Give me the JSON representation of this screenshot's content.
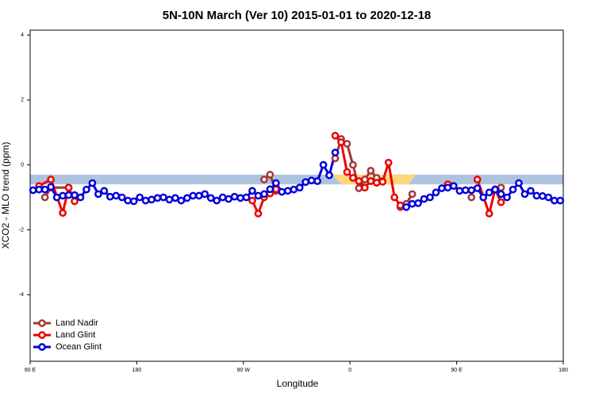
{
  "chart_data": {
    "type": "line",
    "title": "5N-10N March (Ver 10)   2015-01-01 to 2020-12-18",
    "x_label": "Longitude",
    "y_label": "XCO2 - MLO trend (ppm)",
    "xlim": [
      90,
      540
    ],
    "ylim": [
      -6.05,
      4.15
    ],
    "xticks": [
      {
        "value": 90,
        "label": "90 E"
      },
      {
        "value": 180,
        "label": "180"
      },
      {
        "value": 270,
        "label": "90 W"
      },
      {
        "value": 360,
        "label": "0"
      },
      {
        "value": 450,
        "label": "90 E"
      },
      {
        "value": 540,
        "label": "180"
      }
    ],
    "yticks": [
      -4,
      -2,
      0,
      2,
      4
    ],
    "band": [
      -0.6,
      -0.3
    ],
    "band_color": "#aec4de",
    "highlight": [
      345,
      415
    ],
    "highlight_color": "#fdd77a",
    "legend": "bottom-left",
    "series": [
      {
        "name": "Land Nadir",
        "color": "#a0383a",
        "x": [
          102.5,
          107.5,
          122.5,
          200,
          287.5,
          292.5,
          297.5,
          320,
          347.5,
          352.5,
          357.5,
          362.5,
          367.5,
          372.5,
          377.5,
          382.5,
          387.5,
          395,
          402.5,
          407.5,
          412.5,
          425,
          442.5,
          450,
          462.5,
          475,
          487.5
        ],
        "values": [
          -1.0,
          -0.7,
          -0.7,
          null,
          -0.45,
          -0.3,
          -0.8,
          null,
          0.2,
          0.8,
          0.65,
          0.0,
          -0.72,
          -0.45,
          -0.18,
          -0.4,
          -0.5,
          null,
          -1.3,
          -1.2,
          -0.9,
          null,
          -0.6,
          null,
          -1.0,
          null,
          -0.7
        ]
      },
      {
        "name": "Land Glint",
        "color": "#ee0000",
        "x": [
          97.5,
          107.5,
          117.5,
          122.5,
          127.5,
          200,
          277.5,
          282.5,
          287.5,
          292.5,
          297.5,
          320,
          347.5,
          352.5,
          357.5,
          362.5,
          367.5,
          372.5,
          377.5,
          382.5,
          387.5,
          392.5,
          397.5,
          402.5,
          425,
          442.5,
          455,
          467.5,
          477.5,
          482.5,
          487.5
        ],
        "values": [
          -0.65,
          -0.45,
          -1.48,
          -0.7,
          -1.12,
          null,
          -1.1,
          -1.5,
          -1.0,
          -0.88,
          -0.75,
          null,
          0.9,
          0.7,
          -0.22,
          -0.4,
          -0.5,
          -0.7,
          -0.5,
          -0.55,
          -0.52,
          0.07,
          -1.0,
          -1.25,
          null,
          -0.6,
          null,
          -0.45,
          -1.5,
          -0.75,
          -1.15
        ]
      },
      {
        "name": "Ocean Glint",
        "color": "#0000dd",
        "x": [
          92.5,
          97.5,
          102.5,
          107.5,
          112.5,
          117.5,
          122.5,
          127.5,
          132.5,
          137.5,
          142.5,
          147.5,
          152.5,
          157.5,
          162.5,
          167.5,
          172.5,
          177.5,
          182.5,
          187.5,
          192.5,
          197.5,
          202.5,
          207.5,
          212.5,
          217.5,
          222.5,
          227.5,
          232.5,
          237.5,
          242.5,
          247.5,
          252.5,
          257.5,
          262.5,
          267.5,
          272.5,
          277.5,
          282.5,
          287.5,
          292.5,
          297.5,
          302.5,
          307.5,
          312.5,
          317.5,
          322.5,
          327.5,
          332.5,
          337.5,
          342.5,
          347.5,
          377.5,
          407.5,
          412.5,
          417.5,
          422.5,
          427.5,
          432.5,
          437.5,
          442.5,
          447.5,
          452.5,
          457.5,
          462.5,
          467.5,
          472.5,
          477.5,
          482.5,
          487.5,
          492.5,
          497.5,
          502.5,
          507.5,
          512.5,
          517.5,
          522.5,
          527.5,
          532.5,
          537.5
        ],
        "values": [
          -0.78,
          -0.76,
          -0.76,
          -0.68,
          -1.0,
          -0.95,
          -0.93,
          -0.93,
          -1.0,
          -0.76,
          -0.56,
          -0.9,
          -0.8,
          -0.98,
          -0.95,
          -1.0,
          -1.1,
          -1.12,
          -1.0,
          -1.1,
          -1.07,
          -1.02,
          -1.0,
          -1.07,
          -1.02,
          -1.1,
          -1.02,
          -0.95,
          -0.95,
          -0.9,
          -1.02,
          -1.1,
          -1.0,
          -1.05,
          -0.98,
          -1.02,
          -1.0,
          -0.8,
          -0.95,
          -0.9,
          -0.75,
          -0.56,
          -0.83,
          -0.8,
          -0.76,
          -0.7,
          -0.53,
          -0.48,
          -0.5,
          0.0,
          -0.32,
          0.38,
          null,
          -1.3,
          -1.2,
          -1.18,
          -1.05,
          -1.0,
          -0.85,
          -0.72,
          -0.7,
          -0.65,
          -0.8,
          -0.78,
          -0.78,
          -0.72,
          -1.0,
          -0.85,
          -0.76,
          -0.9,
          -1.0,
          -0.76,
          -0.56,
          -0.9,
          -0.8,
          -0.95,
          -0.96,
          -1.0,
          -1.1,
          -1.1
        ]
      }
    ]
  }
}
